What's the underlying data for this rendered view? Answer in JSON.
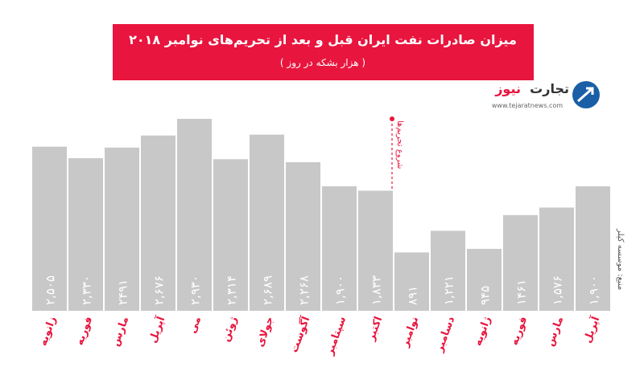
{
  "chart_data": {
    "type": "bar",
    "title": "میزان صادرات نفت ایران قبل و بعد از تحریم‌های نوامبر ۲۰۱۸",
    "subtitle": "( هزار بشکه در روز )",
    "annotation": "شروع تحریم‌ها",
    "source": "منبع: موسسه کپلر",
    "brand": [
      "تجارت",
      "نیوز"
    ],
    "website": "www.tejaratnews.com",
    "categories": [
      "زانویه",
      "فوریه",
      "مارس",
      "آپریل",
      "می",
      "ژوئن",
      "جولای",
      "آگوست",
      "سپتامبر",
      "اکتبر",
      "نوامبر",
      "دسامبر",
      "ژانویه",
      "فوریه",
      "مارس",
      "آپریل"
    ],
    "values": [
      2505,
      2330,
      2491,
      2676,
      2930,
      2314,
      2689,
      2268,
      1900,
      1833,
      891,
      1221,
      945,
      1461,
      1576,
      1900
    ],
    "value_labels": [
      "۲,۵۰۵",
      "۲,۳۳۰",
      "۲۴۹۱",
      "۲,۶۷۶",
      "۲,۹۳۰",
      "۲,۳۱۴",
      "۲,۶۸۹",
      "۲,۲۶۸",
      "۱,۹۰۰",
      "۱,۸۳۳",
      "۸۹۱",
      "۱,۲۲۱",
      "۹۴۵",
      "۱۴۶۱",
      "۱,۵۷۶",
      "۱,۹۰۰"
    ],
    "color": "#c8c8c8",
    "label_color": "#e8153e"
  }
}
